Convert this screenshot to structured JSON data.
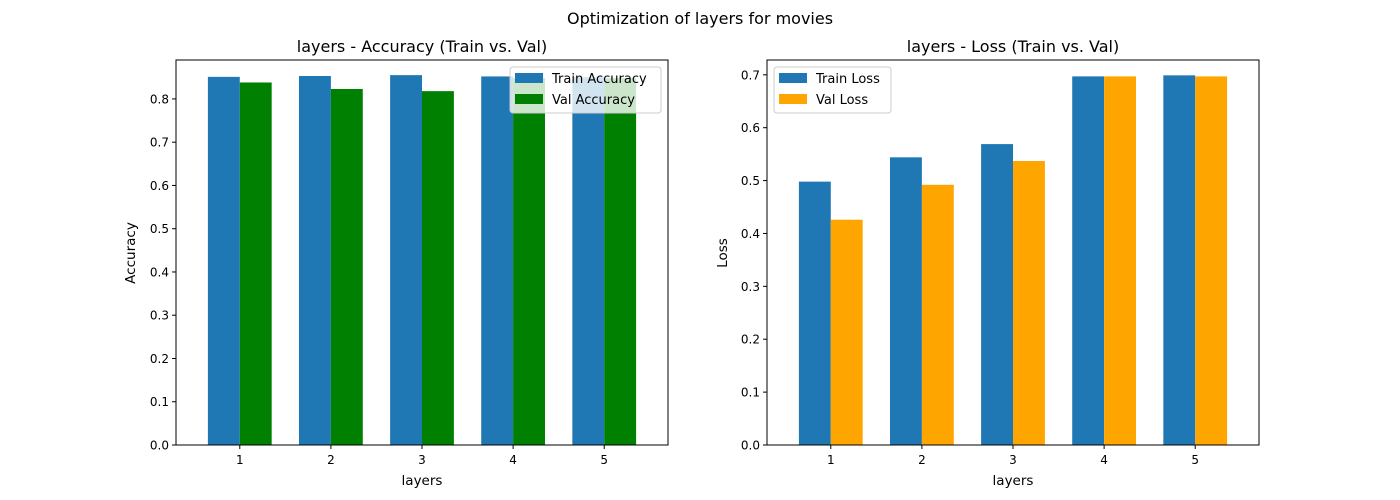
{
  "figure": {
    "suptitle": "Optimization of layers for movies"
  },
  "chart_data": [
    {
      "type": "bar",
      "title": "layers - Accuracy (Train vs. Val)",
      "xlabel": "layers",
      "ylabel": "Accuracy",
      "categories": [
        "1",
        "2",
        "3",
        "4",
        "5"
      ],
      "ylim": [
        0,
        0.89
      ],
      "yticks": [
        0.0,
        0.1,
        0.2,
        0.3,
        0.4,
        0.5,
        0.6,
        0.7,
        0.8
      ],
      "series": [
        {
          "name": "Train Accuracy",
          "color": "#1f77b4",
          "values": [
            0.851,
            0.853,
            0.855,
            0.852,
            0.85
          ]
        },
        {
          "name": "Val Accuracy",
          "color": "#008000",
          "values": [
            0.838,
            0.823,
            0.818,
            0.848,
            0.848
          ]
        }
      ],
      "legend": "top-right",
      "grid": false
    },
    {
      "type": "bar",
      "title": "layers - Loss (Train vs. Val)",
      "xlabel": "layers",
      "ylabel": "Loss",
      "categories": [
        "1",
        "2",
        "3",
        "4",
        "5"
      ],
      "ylim": [
        0,
        0.728
      ],
      "yticks": [
        0.0,
        0.1,
        0.2,
        0.3,
        0.4,
        0.5,
        0.6,
        0.7
      ],
      "series": [
        {
          "name": "Train Loss",
          "color": "#1f77b4",
          "values": [
            0.498,
            0.544,
            0.569,
            0.697,
            0.699
          ]
        },
        {
          "name": "Val Loss",
          "color": "#ffa500",
          "values": [
            0.426,
            0.492,
            0.537,
            0.697,
            0.697
          ]
        }
      ],
      "legend": "top-left",
      "grid": false
    }
  ]
}
